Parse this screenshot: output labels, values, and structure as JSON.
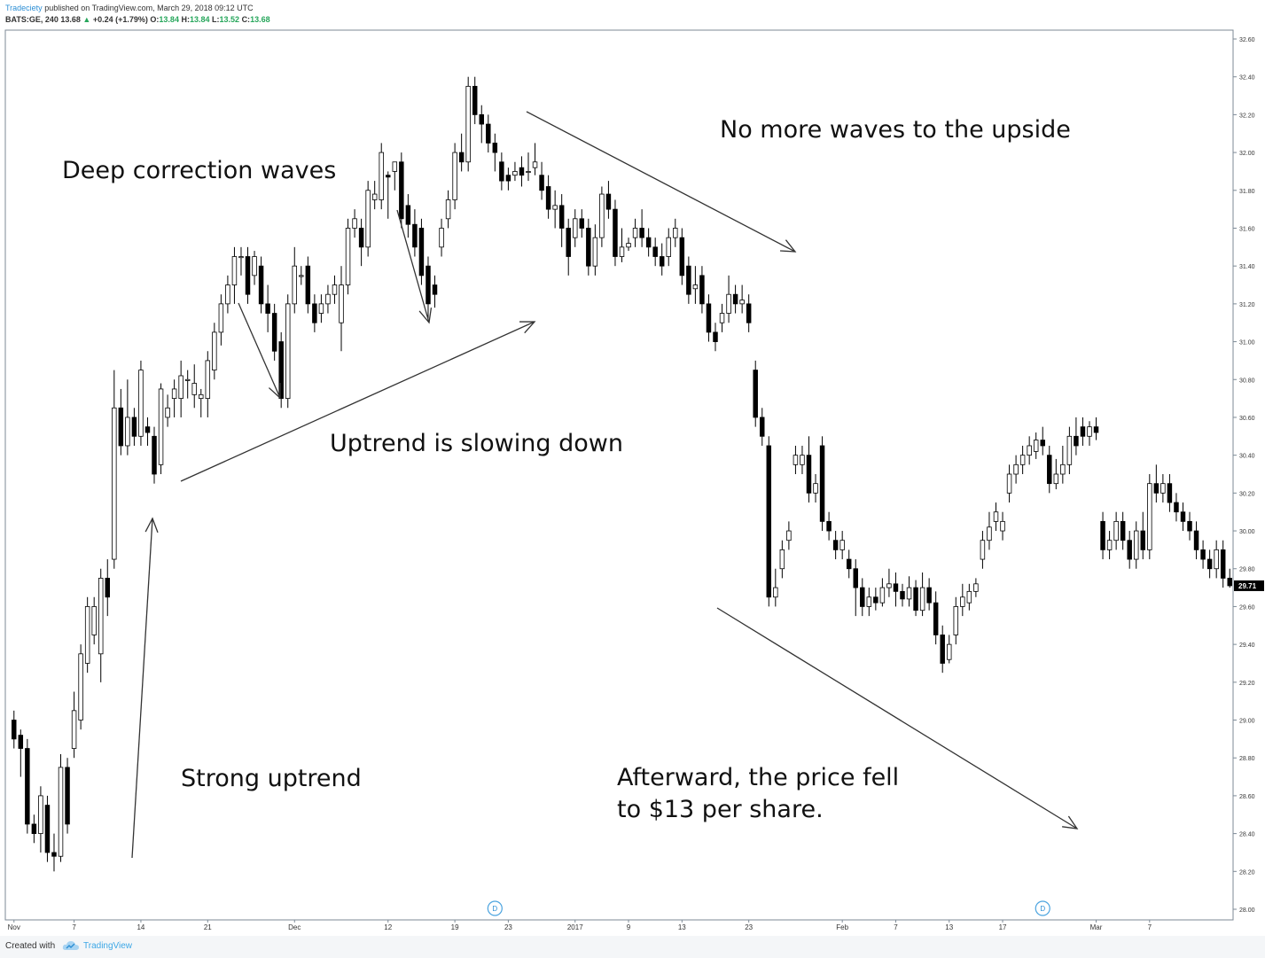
{
  "header": {
    "author": "Tradeciety",
    "published_text": "published on TradingView.com, March 29, 2018 09:12 UTC",
    "symbol": "BATS:GE, 240",
    "last": "13.68",
    "change": "+0.24 (+1.79%)",
    "o_label": "O:",
    "o_value": "13.84",
    "h_label": "H:",
    "h_value": "13.84",
    "l_label": "L:",
    "l_value": "13.52",
    "c_label": "C:",
    "c_value": "13.68"
  },
  "annotations": {
    "deep_correction": "Deep correction waves",
    "no_more_waves": "No more waves to the upside",
    "uptrend_slowing": "Uptrend is slowing down",
    "strong_uptrend": "Strong uptrend",
    "afterward_line1": "Afterward, the price fell",
    "afterward_line2": "to $13 per share."
  },
  "footer": {
    "created_with": "Created with",
    "brand": "TradingView"
  },
  "chart_data": {
    "type": "candlestick",
    "ylim": [
      28.0,
      32.6
    ],
    "y_ticks": [
      "28.00",
      "28.20",
      "28.40",
      "28.60",
      "28.80",
      "29.00",
      "29.20",
      "29.40",
      "29.60",
      "29.80",
      "30.00",
      "30.20",
      "30.40",
      "30.60",
      "30.80",
      "31.00",
      "31.20",
      "31.40",
      "31.60",
      "31.80",
      "32.00",
      "32.20",
      "32.40",
      "32.60"
    ],
    "last_price_label": "29.71",
    "x_tick_labels": [
      {
        "label": "Nov",
        "bar": 0
      },
      {
        "label": "7",
        "bar": 9
      },
      {
        "label": "14",
        "bar": 19
      },
      {
        "label": "21",
        "bar": 29
      },
      {
        "label": "Dec",
        "bar": 42
      },
      {
        "label": "12",
        "bar": 56
      },
      {
        "label": "19",
        "bar": 66
      },
      {
        "label": "23",
        "bar": 74
      },
      {
        "label": "2017",
        "bar": 84
      },
      {
        "label": "9",
        "bar": 92
      },
      {
        "label": "13",
        "bar": 100
      },
      {
        "label": "23",
        "bar": 110
      },
      {
        "label": "Feb",
        "bar": 124
      },
      {
        "label": "7",
        "bar": 132
      },
      {
        "label": "13",
        "bar": 140
      },
      {
        "label": "17",
        "bar": 148
      },
      {
        "label": "Mar",
        "bar": 162
      },
      {
        "label": "7",
        "bar": 170
      }
    ],
    "dividend_markers": [
      {
        "label": "D",
        "bar": 72
      },
      {
        "label": "D",
        "bar": 154
      }
    ],
    "colors": {
      "up_fill": "#ffffff",
      "down_fill": "#000000",
      "wick": "#000000",
      "last_price_bg": "#000000",
      "arrow": "#333333"
    },
    "candles": [
      [
        29.0,
        28.9,
        29.05,
        28.85
      ],
      [
        28.92,
        28.85,
        28.95,
        28.7
      ],
      [
        28.85,
        28.45,
        28.9,
        28.4
      ],
      [
        28.45,
        28.4,
        28.5,
        28.35
      ],
      [
        28.4,
        28.6,
        28.65,
        28.3
      ],
      [
        28.55,
        28.3,
        28.6,
        28.25
      ],
      [
        28.3,
        28.28,
        28.4,
        28.2
      ],
      [
        28.28,
        28.75,
        28.82,
        28.25
      ],
      [
        28.75,
        28.45,
        28.8,
        28.4
      ],
      [
        28.85,
        29.05,
        29.15,
        28.8
      ],
      [
        29.0,
        29.35,
        29.4,
        28.95
      ],
      [
        29.3,
        29.6,
        29.65,
        29.25
      ],
      [
        29.45,
        29.6,
        29.65,
        29.4
      ],
      [
        29.35,
        29.75,
        29.8,
        29.2
      ],
      [
        29.75,
        29.65,
        29.85,
        29.55
      ],
      [
        29.85,
        30.65,
        30.85,
        29.8
      ],
      [
        30.65,
        30.45,
        30.75,
        30.4
      ],
      [
        30.45,
        30.6,
        30.8,
        30.4
      ],
      [
        30.6,
        30.5,
        30.65,
        30.45
      ],
      [
        30.5,
        30.85,
        30.9,
        30.45
      ],
      [
        30.55,
        30.52,
        30.6,
        30.45
      ],
      [
        30.5,
        30.3,
        30.55,
        30.25
      ],
      [
        30.35,
        30.75,
        30.78,
        30.3
      ],
      [
        30.6,
        30.65,
        30.72,
        30.55
      ],
      [
        30.7,
        30.75,
        30.8,
        30.6
      ],
      [
        30.7,
        30.82,
        30.9,
        30.6
      ],
      [
        30.8,
        30.8,
        30.85,
        30.7
      ],
      [
        30.72,
        30.78,
        30.88,
        30.65
      ],
      [
        30.7,
        30.72,
        30.75,
        30.6
      ],
      [
        30.7,
        30.9,
        30.95,
        30.6
      ],
      [
        30.85,
        31.05,
        31.1,
        30.8
      ],
      [
        31.05,
        31.2,
        31.25,
        30.98
      ],
      [
        31.2,
        31.3,
        31.35,
        31.15
      ],
      [
        31.3,
        31.45,
        31.5,
        31.2
      ],
      [
        31.45,
        31.45,
        31.5,
        31.35
      ],
      [
        31.45,
        31.25,
        31.5,
        31.2
      ],
      [
        31.35,
        31.45,
        31.48,
        31.3
      ],
      [
        31.4,
        31.2,
        31.45,
        31.15
      ],
      [
        31.2,
        31.15,
        31.3,
        31.05
      ],
      [
        31.15,
        30.95,
        31.2,
        30.9
      ],
      [
        31.0,
        30.7,
        31.05,
        30.65
      ],
      [
        30.7,
        31.2,
        31.25,
        30.65
      ],
      [
        31.2,
        31.4,
        31.5,
        31.15
      ],
      [
        31.35,
        31.35,
        31.4,
        31.3
      ],
      [
        31.4,
        31.2,
        31.45,
        31.15
      ],
      [
        31.2,
        31.1,
        31.25,
        31.05
      ],
      [
        31.15,
        31.2,
        31.25,
        31.1
      ],
      [
        31.2,
        31.25,
        31.3,
        31.15
      ],
      [
        31.25,
        31.3,
        31.35,
        31.2
      ],
      [
        31.1,
        31.3,
        31.4,
        30.95
      ],
      [
        31.3,
        31.6,
        31.65,
        31.25
      ],
      [
        31.6,
        31.65,
        31.7,
        31.55
      ],
      [
        31.6,
        31.5,
        31.65,
        31.4
      ],
      [
        31.5,
        31.8,
        31.85,
        31.45
      ],
      [
        31.75,
        31.78,
        31.85,
        31.7
      ],
      [
        31.75,
        32.0,
        32.05,
        31.7
      ],
      [
        31.88,
        31.87,
        31.9,
        31.65
      ],
      [
        31.9,
        31.95,
        31.95,
        31.8
      ],
      [
        31.95,
        31.65,
        32.0,
        31.6
      ],
      [
        31.72,
        31.62,
        31.78,
        31.55
      ],
      [
        31.62,
        31.5,
        31.7,
        31.45
      ],
      [
        31.6,
        31.35,
        31.65,
        31.3
      ],
      [
        31.4,
        31.2,
        31.45,
        31.12
      ],
      [
        31.3,
        31.25,
        31.35,
        31.18
      ],
      [
        31.5,
        31.6,
        31.65,
        31.45
      ],
      [
        31.65,
        31.75,
        31.8,
        31.6
      ],
      [
        31.75,
        32.0,
        32.05,
        31.7
      ],
      [
        32.0,
        31.95,
        32.1,
        31.9
      ],
      [
        31.95,
        32.35,
        32.4,
        31.9
      ],
      [
        32.35,
        32.2,
        32.4,
        32.15
      ],
      [
        32.2,
        32.15,
        32.25,
        32.05
      ],
      [
        32.15,
        32.05,
        32.2,
        32.0
      ],
      [
        32.05,
        32.0,
        32.1,
        31.9
      ],
      [
        31.95,
        31.85,
        32.0,
        31.8
      ],
      [
        31.88,
        31.85,
        31.92,
        31.8
      ],
      [
        31.88,
        31.9,
        31.95,
        31.85
      ],
      [
        31.92,
        31.88,
        31.98,
        31.82
      ],
      [
        31.9,
        31.9,
        32.0,
        31.85
      ],
      [
        31.92,
        31.95,
        32.05,
        31.88
      ],
      [
        31.88,
        31.8,
        31.95,
        31.75
      ],
      [
        31.82,
        31.7,
        31.88,
        31.65
      ],
      [
        31.7,
        31.72,
        31.8,
        31.6
      ],
      [
        31.72,
        31.6,
        31.78,
        31.5
      ],
      [
        31.6,
        31.45,
        31.65,
        31.35
      ],
      [
        31.55,
        31.65,
        31.7,
        31.5
      ],
      [
        31.65,
        31.6,
        31.7,
        31.55
      ],
      [
        31.6,
        31.4,
        31.65,
        31.35
      ],
      [
        31.4,
        31.55,
        31.62,
        31.35
      ],
      [
        31.55,
        31.78,
        31.82,
        31.5
      ],
      [
        31.78,
        31.7,
        31.85,
        31.65
      ],
      [
        31.7,
        31.45,
        31.75,
        31.4
      ],
      [
        31.45,
        31.5,
        31.6,
        31.42
      ],
      [
        31.5,
        31.52,
        31.55,
        31.48
      ],
      [
        31.55,
        31.6,
        31.65,
        31.5
      ],
      [
        31.6,
        31.55,
        31.7,
        31.5
      ],
      [
        31.55,
        31.5,
        31.6,
        31.45
      ],
      [
        31.5,
        31.45,
        31.55,
        31.4
      ],
      [
        31.45,
        31.4,
        31.52,
        31.35
      ],
      [
        31.45,
        31.55,
        31.6,
        31.4
      ],
      [
        31.55,
        31.6,
        31.65,
        31.5
      ],
      [
        31.55,
        31.35,
        31.6,
        31.3
      ],
      [
        31.4,
        31.25,
        31.45,
        31.2
      ],
      [
        31.28,
        31.3,
        31.4,
        31.2
      ],
      [
        31.35,
        31.2,
        31.4,
        31.15
      ],
      [
        31.2,
        31.05,
        31.25,
        31.0
      ],
      [
        31.05,
        31.0,
        31.1,
        30.95
      ],
      [
        31.1,
        31.15,
        31.2,
        31.05
      ],
      [
        31.15,
        31.25,
        31.35,
        31.1
      ],
      [
        31.25,
        31.2,
        31.3,
        31.15
      ],
      [
        31.2,
        31.22,
        31.3,
        31.15
      ],
      [
        31.2,
        31.1,
        31.25,
        31.05
      ],
      [
        30.85,
        30.6,
        30.9,
        30.55
      ],
      [
        30.6,
        30.5,
        30.65,
        30.45
      ],
      [
        30.45,
        29.65,
        30.5,
        29.6
      ],
      [
        29.65,
        29.7,
        29.8,
        29.6
      ],
      [
        29.8,
        29.9,
        29.95,
        29.75
      ],
      [
        29.95,
        30.0,
        30.05,
        29.9
      ],
      [
        30.35,
        30.4,
        30.45,
        30.3
      ],
      [
        30.35,
        30.4,
        30.45,
        30.3
      ],
      [
        30.4,
        30.2,
        30.5,
        30.15
      ],
      [
        30.2,
        30.25,
        30.3,
        30.15
      ],
      [
        30.45,
        30.05,
        30.5,
        30.0
      ],
      [
        30.05,
        30.0,
        30.1,
        29.95
      ],
      [
        29.95,
        29.9,
        30.0,
        29.85
      ],
      [
        29.9,
        29.95,
        30.0,
        29.85
      ],
      [
        29.85,
        29.8,
        29.9,
        29.75
      ],
      [
        29.8,
        29.7,
        29.85,
        29.55
      ],
      [
        29.7,
        29.6,
        29.75,
        29.55
      ],
      [
        29.6,
        29.65,
        29.7,
        29.55
      ],
      [
        29.65,
        29.62,
        29.7,
        29.58
      ],
      [
        29.62,
        29.7,
        29.75,
        29.6
      ],
      [
        29.7,
        29.72,
        29.8,
        29.65
      ],
      [
        29.72,
        29.68,
        29.78,
        29.6
      ],
      [
        29.68,
        29.64,
        29.72,
        29.6
      ],
      [
        29.64,
        29.7,
        29.76,
        29.6
      ],
      [
        29.7,
        29.58,
        29.74,
        29.55
      ],
      [
        29.58,
        29.7,
        29.78,
        29.55
      ],
      [
        29.7,
        29.62,
        29.75,
        29.58
      ],
      [
        29.62,
        29.45,
        29.68,
        29.4
      ],
      [
        29.45,
        29.3,
        29.5,
        29.25
      ],
      [
        29.32,
        29.4,
        29.45,
        29.3
      ],
      [
        29.45,
        29.6,
        29.65,
        29.4
      ],
      [
        29.6,
        29.65,
        29.72,
        29.55
      ],
      [
        29.62,
        29.68,
        29.72,
        29.58
      ],
      [
        29.68,
        29.72,
        29.75,
        29.65
      ],
      [
        29.85,
        29.95,
        30.0,
        29.8
      ],
      [
        29.95,
        30.02,
        30.1,
        29.9
      ],
      [
        30.05,
        30.1,
        30.15,
        30.0
      ],
      [
        30.0,
        30.05,
        30.1,
        29.95
      ],
      [
        30.2,
        30.3,
        30.35,
        30.15
      ],
      [
        30.3,
        30.35,
        30.4,
        30.25
      ],
      [
        30.35,
        30.4,
        30.45,
        30.3
      ],
      [
        30.4,
        30.45,
        30.5,
        30.35
      ],
      [
        30.42,
        30.48,
        30.52,
        30.38
      ],
      [
        30.48,
        30.45,
        30.55,
        30.4
      ],
      [
        30.4,
        30.25,
        30.45,
        30.2
      ],
      [
        30.25,
        30.3,
        30.38,
        30.22
      ],
      [
        30.3,
        30.35,
        30.45,
        30.25
      ],
      [
        30.35,
        30.5,
        30.55,
        30.3
      ],
      [
        30.5,
        30.45,
        30.6,
        30.4
      ],
      [
        30.55,
        30.5,
        30.6,
        30.45
      ],
      [
        30.5,
        30.55,
        30.58,
        30.45
      ],
      [
        30.55,
        30.52,
        30.6,
        30.48
      ],
      [
        30.05,
        29.9,
        30.1,
        29.85
      ],
      [
        29.9,
        29.95,
        30.0,
        29.85
      ],
      [
        29.95,
        30.05,
        30.1,
        29.9
      ],
      [
        30.05,
        29.95,
        30.1,
        29.9
      ],
      [
        29.95,
        29.85,
        30.0,
        29.8
      ],
      [
        29.85,
        30.0,
        30.05,
        29.8
      ],
      [
        30.0,
        29.9,
        30.1,
        29.85
      ],
      [
        29.9,
        30.25,
        30.3,
        29.85
      ],
      [
        30.25,
        30.2,
        30.35,
        30.15
      ],
      [
        30.2,
        30.25,
        30.3,
        30.15
      ],
      [
        30.25,
        30.15,
        30.3,
        30.1
      ],
      [
        30.15,
        30.1,
        30.2,
        30.05
      ],
      [
        30.1,
        30.05,
        30.15,
        30.0
      ],
      [
        30.05,
        30.0,
        30.1,
        29.95
      ],
      [
        30.0,
        29.9,
        30.05,
        29.85
      ],
      [
        29.9,
        29.85,
        29.95,
        29.8
      ],
      [
        29.85,
        29.8,
        29.9,
        29.75
      ],
      [
        29.8,
        29.9,
        29.95,
        29.75
      ],
      [
        29.9,
        29.75,
        29.95,
        29.7
      ],
      [
        29.75,
        29.71,
        29.8,
        29.7
      ]
    ]
  }
}
